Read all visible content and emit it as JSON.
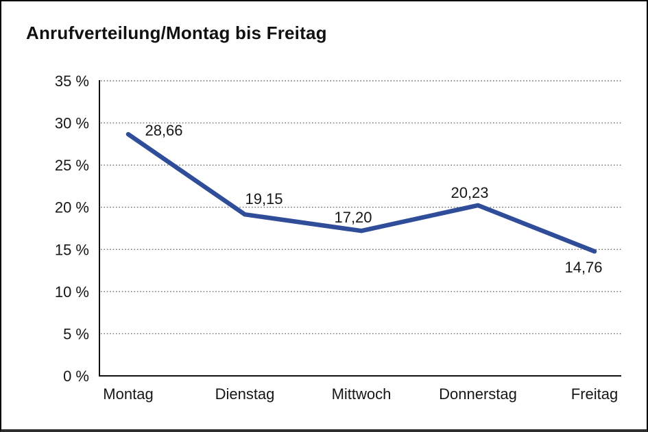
{
  "chart_data": {
    "type": "line",
    "title": "Anrufverteilung/Montag bis Freitag",
    "categories": [
      "Montag",
      "Dienstag",
      "Mittwoch",
      "Donnerstag",
      "Freitag"
    ],
    "series": [
      {
        "name": "Anrufverteilung",
        "values": [
          28.66,
          19.15,
          17.2,
          20.23,
          14.76
        ]
      }
    ],
    "data_labels": [
      "28,66",
      "19,15",
      "17,20",
      "20,23",
      "14,76"
    ],
    "xlabel": "",
    "ylabel": "",
    "ylim": [
      0,
      35
    ],
    "y_tick_step": 5,
    "y_tick_labels": [
      "0 %",
      "5 %",
      "10 %",
      "15 %",
      "20 %",
      "25 %",
      "30 %",
      "35 %"
    ],
    "grid": "horizontal-dotted",
    "legend": "none",
    "line_color": "#2f4d99",
    "text_color": "#161616",
    "axis_color": "#111111",
    "grid_color": "#6e6e6e",
    "background": "#ffffff"
  }
}
